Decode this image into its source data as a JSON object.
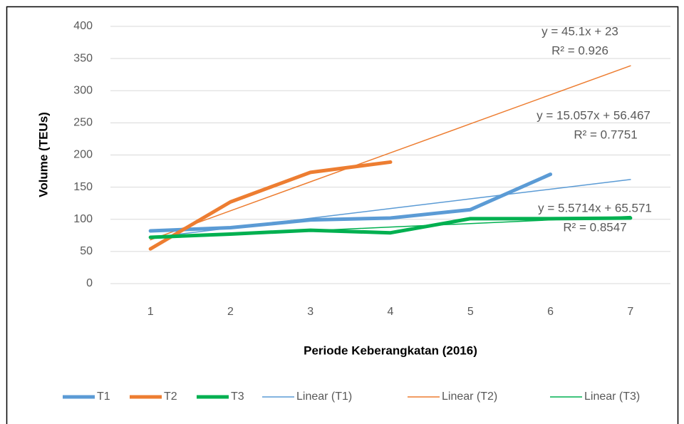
{
  "chart_data": {
    "type": "line",
    "y_label": "Volume (TEUs)",
    "x_label": "Periode Keberangkatan (2016)",
    "categories": [
      1,
      2,
      3,
      4,
      5,
      6,
      7
    ],
    "ylim": [
      0,
      400
    ],
    "yticks": [
      0,
      50,
      100,
      150,
      200,
      250,
      300,
      350,
      400
    ],
    "grid": true,
    "legend": "bottom",
    "series": [
      {
        "name": "T1",
        "color": "#5b9bd5",
        "trendline": false,
        "values": [
          82,
          87,
          99,
          102,
          115,
          170,
          null
        ]
      },
      {
        "name": "T2",
        "color": "#ed7d31",
        "trendline": false,
        "values": [
          54,
          127,
          173,
          189,
          null,
          null,
          null
        ]
      },
      {
        "name": "T3",
        "color": "#00b050",
        "trendline": false,
        "values": [
          72,
          77,
          83,
          79,
          101,
          101,
          102
        ]
      },
      {
        "name": "Linear (T1)",
        "color": "#5b9bd5",
        "trendline": true,
        "values": [
          71.5,
          86.6,
          101.6,
          116.7,
          131.8,
          146.8,
          161.9
        ]
      },
      {
        "name": "Linear (T2)",
        "color": "#ed7d31",
        "trendline": true,
        "values": [
          68.1,
          113.2,
          158.3,
          203.4,
          248.5,
          293.6,
          338.7
        ]
      },
      {
        "name": "Linear (T3)",
        "color": "#00b050",
        "trendline": true,
        "values": [
          71.1,
          76.7,
          82.3,
          87.9,
          93.4,
          99.0,
          104.6
        ]
      }
    ],
    "annotations": [
      "y = 45.1x + 23",
      "R² = 0.926",
      "y = 15.057x + 56.467",
      "R² = 0.7751",
      "y = 5.5714x + 65.571",
      "R² = 0.8547"
    ]
  }
}
